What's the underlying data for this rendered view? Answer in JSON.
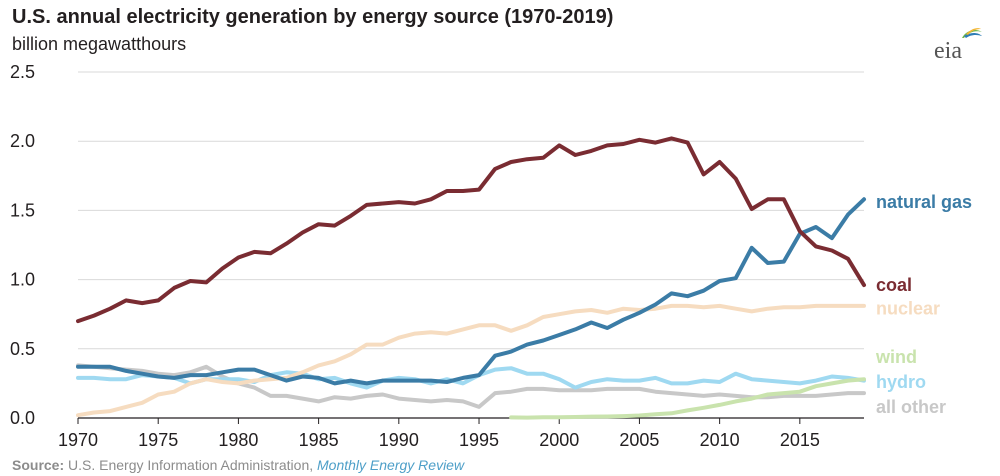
{
  "header": {
    "title": "U.S. annual electricity generation by energy source (1970-2019)",
    "subtitle": "billion megawatthours"
  },
  "logo": {
    "text": "eia"
  },
  "footer": {
    "source_label": "Source:",
    "source_text": "U.S. Energy Information Administration,",
    "source_link": "Monthly Energy Review"
  },
  "chart_data": {
    "type": "line",
    "title": "U.S. annual electricity generation by energy source (1970-2019)",
    "ylabel": "billion megawatthours",
    "xlabel": "",
    "xlim": [
      1970,
      2019
    ],
    "ylim": [
      0,
      2.5
    ],
    "x_ticks": [
      "1970",
      "1975",
      "1980",
      "1985",
      "1990",
      "1995",
      "2000",
      "2005",
      "2010",
      "2015"
    ],
    "y_ticks": [
      "0.0",
      "0.5",
      "1.0",
      "1.5",
      "2.0",
      "2.5"
    ],
    "grid": "horizontal",
    "legend": "end-of-line labels",
    "series": [
      {
        "name": "all other",
        "color": "#c8c8c8",
        "x_start": 1970,
        "values": [
          0.38,
          0.37,
          0.36,
          0.35,
          0.34,
          0.32,
          0.31,
          0.33,
          0.37,
          0.3,
          0.25,
          0.22,
          0.16,
          0.16,
          0.14,
          0.12,
          0.15,
          0.14,
          0.16,
          0.17,
          0.14,
          0.13,
          0.12,
          0.13,
          0.12,
          0.08,
          0.18,
          0.19,
          0.21,
          0.21,
          0.2,
          0.2,
          0.2,
          0.21,
          0.21,
          0.21,
          0.19,
          0.18,
          0.17,
          0.16,
          0.17,
          0.16,
          0.15,
          0.15,
          0.16,
          0.16,
          0.16,
          0.17,
          0.18,
          0.18
        ]
      },
      {
        "name": "hydro",
        "color": "#9fd9f1",
        "x_start": 1970,
        "values": [
          0.29,
          0.29,
          0.28,
          0.28,
          0.31,
          0.3,
          0.29,
          0.25,
          0.28,
          0.28,
          0.28,
          0.26,
          0.31,
          0.33,
          0.32,
          0.28,
          0.29,
          0.25,
          0.22,
          0.27,
          0.29,
          0.28,
          0.25,
          0.28,
          0.25,
          0.31,
          0.35,
          0.36,
          0.32,
          0.32,
          0.28,
          0.22,
          0.26,
          0.28,
          0.27,
          0.27,
          0.29,
          0.25,
          0.25,
          0.27,
          0.26,
          0.32,
          0.28,
          0.27,
          0.26,
          0.25,
          0.27,
          0.3,
          0.29,
          0.27
        ]
      },
      {
        "name": "wind",
        "color": "#c9e3ad",
        "x_start": 1997,
        "values": [
          0.004,
          0.003,
          0.005,
          0.006,
          0.007,
          0.01,
          0.011,
          0.014,
          0.018,
          0.027,
          0.034,
          0.055,
          0.074,
          0.095,
          0.12,
          0.14,
          0.17,
          0.18,
          0.19,
          0.23,
          0.25,
          0.27,
          0.28
        ]
      },
      {
        "name": "nuclear",
        "color": "#f6dcc0",
        "x_start": 1970,
        "values": [
          0.02,
          0.04,
          0.05,
          0.08,
          0.11,
          0.17,
          0.19,
          0.25,
          0.28,
          0.26,
          0.25,
          0.27,
          0.28,
          0.29,
          0.33,
          0.38,
          0.41,
          0.46,
          0.53,
          0.53,
          0.58,
          0.61,
          0.62,
          0.61,
          0.64,
          0.67,
          0.67,
          0.63,
          0.67,
          0.73,
          0.75,
          0.77,
          0.78,
          0.76,
          0.79,
          0.78,
          0.79,
          0.81,
          0.81,
          0.8,
          0.81,
          0.79,
          0.77,
          0.79,
          0.8,
          0.8,
          0.81,
          0.81,
          0.81,
          0.81
        ]
      },
      {
        "name": "natural gas",
        "color": "#3b7ca6",
        "x_start": 1970,
        "values": [
          0.37,
          0.37,
          0.37,
          0.34,
          0.32,
          0.3,
          0.29,
          0.31,
          0.31,
          0.33,
          0.35,
          0.35,
          0.31,
          0.27,
          0.3,
          0.29,
          0.25,
          0.27,
          0.25,
          0.27,
          0.27,
          0.27,
          0.27,
          0.26,
          0.29,
          0.31,
          0.45,
          0.48,
          0.53,
          0.56,
          0.6,
          0.64,
          0.69,
          0.65,
          0.71,
          0.76,
          0.82,
          0.9,
          0.88,
          0.92,
          0.99,
          1.01,
          1.23,
          1.12,
          1.13,
          1.33,
          1.38,
          1.3,
          1.47,
          1.58
        ]
      },
      {
        "name": "coal",
        "color": "#7a2c32",
        "x_start": 1970,
        "values": [
          0.7,
          0.74,
          0.79,
          0.85,
          0.83,
          0.85,
          0.94,
          0.99,
          0.98,
          1.08,
          1.16,
          1.2,
          1.19,
          1.26,
          1.34,
          1.4,
          1.39,
          1.46,
          1.54,
          1.55,
          1.56,
          1.55,
          1.58,
          1.64,
          1.64,
          1.65,
          1.8,
          1.85,
          1.87,
          1.88,
          1.97,
          1.9,
          1.93,
          1.97,
          1.98,
          2.01,
          1.99,
          2.02,
          1.99,
          1.76,
          1.85,
          1.73,
          1.51,
          1.58,
          1.58,
          1.35,
          1.24,
          1.21,
          1.15,
          0.96
        ]
      }
    ],
    "end_labels": [
      {
        "series": "natural gas",
        "text": "natural gas",
        "y": 1.56
      },
      {
        "series": "coal",
        "text": "coal",
        "y": 0.96
      },
      {
        "series": "nuclear",
        "text": "nuclear",
        "y": 0.79
      },
      {
        "series": "wind",
        "text": "wind",
        "y": 0.44
      },
      {
        "series": "hydro",
        "text": "hydro",
        "y": 0.26
      },
      {
        "series": "all other",
        "text": "all other",
        "y": 0.08
      }
    ]
  }
}
